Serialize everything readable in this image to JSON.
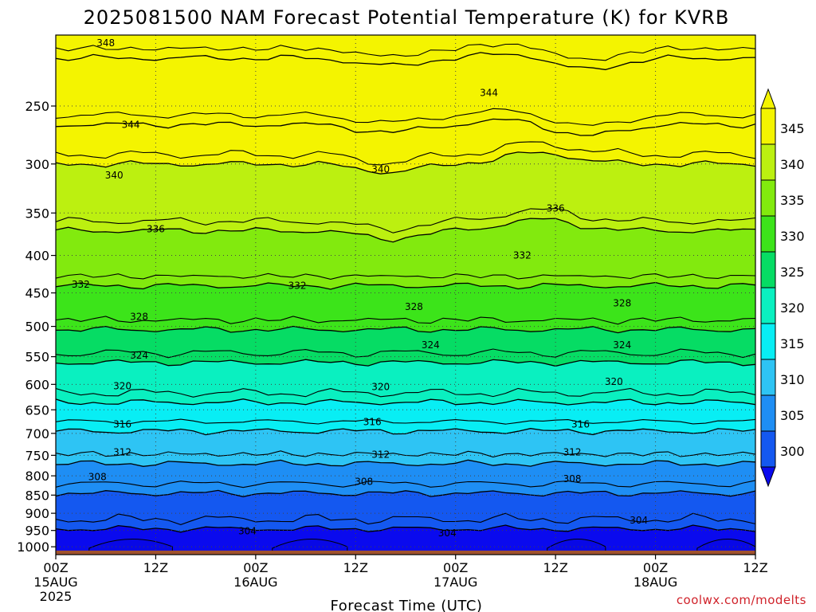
{
  "chart_data": {
    "type": "heatmap",
    "title": "2025081500 NAM Forecast Potential Temperature (K) for KVRB",
    "xlabel": "Forecast Time (UTC)",
    "ylabel": "",
    "credit": "coolwx.com/modelts",
    "units": "K",
    "pressure_levels": [
      250,
      300,
      350,
      400,
      450,
      500,
      550,
      600,
      650,
      700,
      750,
      800,
      850,
      900,
      950,
      1000
    ],
    "y_ticks": [
      "250",
      "300",
      "350",
      "400",
      "450",
      "500",
      "550",
      "600",
      "650",
      "700",
      "750",
      "800",
      "850",
      "900",
      "950",
      "1000"
    ],
    "x_ticks": [
      {
        "hour": 0,
        "line1": "00Z",
        "line2": "15AUG",
        "line3": "2025"
      },
      {
        "hour": 12,
        "line1": "12Z",
        "line2": "",
        "line3": ""
      },
      {
        "hour": 24,
        "line1": "00Z",
        "line2": "16AUG",
        "line3": ""
      },
      {
        "hour": 36,
        "line1": "12Z",
        "line2": "",
        "line3": ""
      },
      {
        "hour": 48,
        "line1": "00Z",
        "line2": "17AUG",
        "line3": ""
      },
      {
        "hour": 60,
        "line1": "12Z",
        "line2": "",
        "line3": ""
      },
      {
        "hour": 72,
        "line1": "00Z",
        "line2": "18AUG",
        "line3": ""
      },
      {
        "hour": 84,
        "line1": "12Z",
        "line2": "",
        "line3": ""
      }
    ],
    "xlim": [
      0,
      84
    ],
    "ylim": [
      200,
      1020
    ],
    "colorbar": {
      "levels": [
        300,
        305,
        310,
        315,
        320,
        325,
        330,
        335,
        340,
        345
      ],
      "labels": [
        "345",
        "340",
        "335",
        "330",
        "325",
        "320",
        "315",
        "310",
        "305",
        "300"
      ],
      "colors": [
        "#0a0aee",
        "#1458f0",
        "#1e8ef4",
        "#2ec4f4",
        "#08eef4",
        "#0af0c0",
        "#06dc64",
        "#3ce41a",
        "#82ea0e",
        "#bcf010",
        "#f4f400"
      ]
    },
    "contours": [
      {
        "value": 304,
        "label": "304",
        "base_p": 945
      },
      {
        "value": 308,
        "label": "308",
        "base_p": 845
      },
      {
        "value": 312,
        "label": "312",
        "base_p": 770
      },
      {
        "value": 316,
        "label": "316",
        "base_p": 695
      },
      {
        "value": 320,
        "label": "320",
        "base_p": 635
      },
      {
        "value": 324,
        "label": "324",
        "base_p": 560
      },
      {
        "value": 328,
        "label": "328",
        "base_p": 505
      },
      {
        "value": 332,
        "label": "332",
        "base_p": 440
      },
      {
        "value": 336,
        "label": "336",
        "base_p": 370
      },
      {
        "value": 340,
        "label": "340",
        "base_p": 300
      },
      {
        "value": 344,
        "label": "344",
        "base_p": 265
      },
      {
        "value": 348,
        "label": "348",
        "base_p": 215
      }
    ],
    "contour_labels": [
      {
        "text": "348",
        "hour": 6,
        "p": 205
      },
      {
        "text": "344",
        "hour": 9,
        "p": 265
      },
      {
        "text": "344",
        "hour": 52,
        "p": 240
      },
      {
        "text": "340",
        "hour": 7,
        "p": 311
      },
      {
        "text": "340",
        "hour": 39,
        "p": 305
      },
      {
        "text": "336",
        "hour": 12,
        "p": 368
      },
      {
        "text": "336",
        "hour": 60,
        "p": 345
      },
      {
        "text": "332",
        "hour": 3,
        "p": 438
      },
      {
        "text": "332",
        "hour": 29,
        "p": 440
      },
      {
        "text": "332",
        "hour": 56,
        "p": 400
      },
      {
        "text": "328",
        "hour": 10,
        "p": 485
      },
      {
        "text": "328",
        "hour": 43,
        "p": 470
      },
      {
        "text": "328",
        "hour": 68,
        "p": 465
      },
      {
        "text": "324",
        "hour": 10,
        "p": 548
      },
      {
        "text": "324",
        "hour": 45,
        "p": 530
      },
      {
        "text": "324",
        "hour": 68,
        "p": 530
      },
      {
        "text": "320",
        "hour": 8,
        "p": 603
      },
      {
        "text": "320",
        "hour": 39,
        "p": 605
      },
      {
        "text": "320",
        "hour": 67,
        "p": 595
      },
      {
        "text": "316",
        "hour": 8,
        "p": 680
      },
      {
        "text": "316",
        "hour": 38,
        "p": 675
      },
      {
        "text": "316",
        "hour": 63,
        "p": 680
      },
      {
        "text": "312",
        "hour": 8,
        "p": 743
      },
      {
        "text": "312",
        "hour": 39,
        "p": 748
      },
      {
        "text": "312",
        "hour": 62,
        "p": 743
      },
      {
        "text": "308",
        "hour": 5,
        "p": 803
      },
      {
        "text": "308",
        "hour": 37,
        "p": 815
      },
      {
        "text": "308",
        "hour": 62,
        "p": 808
      },
      {
        "text": "304",
        "hour": 23,
        "p": 952
      },
      {
        "text": "304",
        "hour": 47,
        "p": 958
      },
      {
        "text": "304",
        "hour": 70,
        "p": 920
      }
    ],
    "grid": true,
    "legend": "right"
  }
}
